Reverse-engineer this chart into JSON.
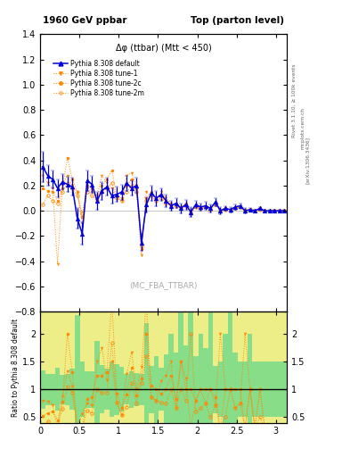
{
  "title_left": "1960 GeV ppbar",
  "title_right": "Top (parton level)",
  "subtitle": "Δφ (ttbar) (Mtt < 450)",
  "watermark": "(MC_FBA_TTBAR)",
  "right_label_top": "Rivet 3.1.10, ≥ 100k events",
  "right_label_mid": "mcplots.cern.ch",
  "right_label_bot": "[arXiv:1306.3436]",
  "ylabel_ratio": "Ratio to Pythia 8.308 default",
  "xlim": [
    0,
    3.14159
  ],
  "ylim_main": [
    -0.8,
    1.4
  ],
  "ylim_ratio": [
    0.4,
    2.4
  ],
  "color_default": "#0000dd",
  "color_orange": "#ff8800",
  "bg_green": "#88dd88",
  "bg_yellow": "#eeee88",
  "legend_entries": [
    "Pythia 8.308 default",
    "Pythia 8.308 tune-1",
    "Pythia 8.308 tune-2c",
    "Pythia 8.308 tune-2m"
  ],
  "x_edges": [
    0.0,
    0.0628,
    0.1257,
    0.1885,
    0.2513,
    0.3142,
    0.377,
    0.4398,
    0.5027,
    0.5655,
    0.6283,
    0.6912,
    0.754,
    0.8168,
    0.8796,
    0.9425,
    1.0053,
    1.0681,
    1.131,
    1.1938,
    1.2566,
    1.3194,
    1.3823,
    1.4451,
    1.5079,
    1.5708,
    1.6336,
    1.6964,
    1.7593,
    1.8221,
    1.8849,
    1.9478,
    2.0106,
    2.0734,
    2.1362,
    2.1991,
    2.2619,
    2.3247,
    2.3876,
    2.4504,
    2.5132,
    2.5761,
    2.6389,
    2.7017,
    2.7646,
    2.8274,
    2.8902,
    2.953,
    3.0159,
    3.0787,
    3.1416
  ],
  "default_vals": [
    0.35,
    0.28,
    0.25,
    0.18,
    0.23,
    0.21,
    0.19,
    -0.06,
    -0.18,
    0.24,
    0.21,
    0.08,
    0.16,
    0.19,
    0.12,
    0.13,
    0.15,
    0.22,
    0.18,
    0.2,
    -0.25,
    0.05,
    0.14,
    0.1,
    0.13,
    0.08,
    0.04,
    0.06,
    0.02,
    0.05,
    -0.01,
    0.05,
    0.03,
    0.04,
    0.02,
    0.07,
    0.0,
    0.02,
    0.01,
    0.03,
    0.04,
    0.0,
    0.01,
    0.0,
    0.02,
    0.0,
    0.0,
    0.0,
    0.0,
    0.0
  ],
  "default_err": [
    0.12,
    0.08,
    0.07,
    0.07,
    0.06,
    0.06,
    0.07,
    0.08,
    0.09,
    0.08,
    0.07,
    0.07,
    0.07,
    0.07,
    0.06,
    0.06,
    0.06,
    0.06,
    0.06,
    0.06,
    0.07,
    0.06,
    0.06,
    0.06,
    0.05,
    0.05,
    0.04,
    0.04,
    0.04,
    0.04,
    0.04,
    0.03,
    0.03,
    0.03,
    0.03,
    0.03,
    0.03,
    0.02,
    0.02,
    0.02,
    0.02,
    0.02,
    0.01,
    0.01,
    0.01,
    0.01,
    0.01,
    0.01,
    0.01,
    0.01
  ],
  "tune1_vals": [
    0.28,
    0.22,
    0.18,
    -0.42,
    0.2,
    0.28,
    0.2,
    0.15,
    -0.1,
    0.18,
    0.15,
    0.12,
    0.28,
    0.22,
    0.18,
    0.1,
    0.08,
    0.28,
    0.3,
    0.2,
    -0.35,
    0.15,
    0.12,
    0.08,
    0.15,
    0.1,
    0.06,
    0.04,
    0.03,
    0.06,
    0.0,
    0.04,
    0.03,
    0.03,
    0.02,
    0.05,
    0.01,
    0.02,
    0.01,
    0.02,
    0.03,
    0.01,
    0.01,
    0.0,
    0.02,
    0.0,
    0.0,
    0.0,
    0.0,
    0.0
  ],
  "tune2c_vals": [
    0.18,
    0.16,
    0.15,
    0.08,
    0.18,
    0.42,
    0.25,
    0.15,
    -0.05,
    0.2,
    0.18,
    0.1,
    0.2,
    0.25,
    0.32,
    0.12,
    0.1,
    0.2,
    0.25,
    0.18,
    -0.3,
    0.1,
    0.15,
    0.1,
    0.12,
    0.08,
    0.05,
    0.05,
    0.03,
    0.05,
    -0.01,
    0.04,
    0.03,
    0.04,
    0.02,
    0.06,
    0.0,
    0.02,
    0.01,
    0.03,
    0.04,
    0.0,
    0.01,
    0.0,
    0.02,
    0.0,
    0.0,
    0.0,
    0.0,
    0.0
  ],
  "tune2m_vals": [
    0.05,
    0.12,
    0.08,
    0.06,
    0.15,
    0.22,
    0.18,
    0.12,
    -0.02,
    0.15,
    0.12,
    0.08,
    0.15,
    0.18,
    0.22,
    0.1,
    0.08,
    0.15,
    0.2,
    0.15,
    -0.28,
    0.08,
    0.12,
    0.08,
    0.1,
    0.06,
    0.04,
    0.04,
    0.02,
    0.04,
    -0.02,
    0.03,
    0.02,
    0.03,
    0.01,
    0.05,
    0.0,
    0.01,
    0.01,
    0.02,
    0.03,
    0.0,
    0.01,
    0.0,
    0.01,
    0.0,
    0.0,
    0.0,
    0.0,
    0.0
  ],
  "ratio_band_green": 0.1,
  "ratio_band_yellow": 0.5
}
